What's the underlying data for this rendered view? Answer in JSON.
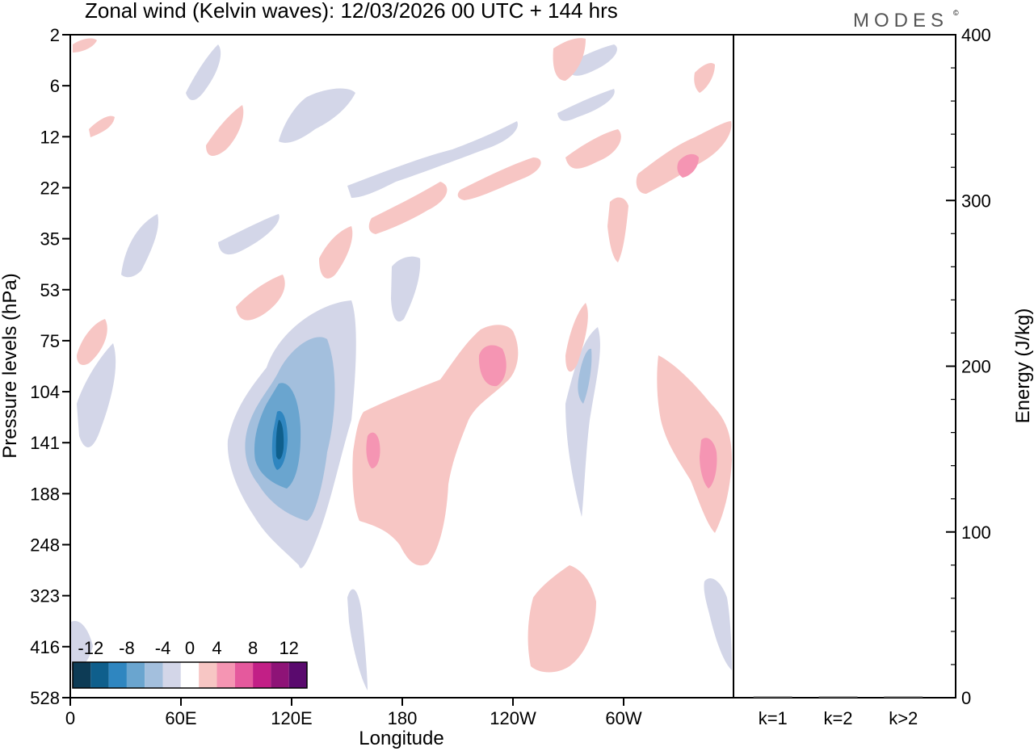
{
  "header": {
    "title": "Zonal wind (Kelvin waves):  12/03/2026  00 UTC  + 144 hrs",
    "logo": "MODES",
    "logo_mark": "©"
  },
  "chart_data": [
    {
      "type": "heatmap",
      "title": "Zonal wind (Kelvin waves):  12/03/2026  00 UTC  + 144 hrs",
      "xlabel": "Longitude",
      "ylabel": "Pressure levels (hPa)",
      "x_tick_labels": [
        "0",
        "60E",
        "120E",
        "180",
        "120W",
        "60W"
      ],
      "y_tick_labels": [
        "2",
        "6",
        "12",
        "22",
        "35",
        "53",
        "75",
        "104",
        "141",
        "188",
        "248",
        "323",
        "416",
        "528"
      ],
      "colorbar": {
        "labels": [
          "-12",
          "-8",
          "-4",
          "0",
          "4",
          "8",
          "12"
        ],
        "levels": [
          -14,
          -12,
          -10,
          -8,
          -6,
          -4,
          -2,
          2,
          4,
          6,
          8,
          10,
          12,
          14
        ],
        "colors": [
          "#0d3b55",
          "#0f5f8c",
          "#2f86c0",
          "#6aa5cf",
          "#a3bfdd",
          "#d3d6e8",
          "#ffffff",
          "#f7c6c4",
          "#f595b3",
          "#e5599d",
          "#c21f86",
          "#8e1377",
          "#5a0a6e"
        ]
      },
      "features": [
        {
          "sign": "negative",
          "max_abs": 13,
          "lon": 107,
          "pressure": 141
        },
        {
          "sign": "positive",
          "max_abs": 6,
          "lon": 223,
          "pressure": 90
        },
        {
          "sign": "positive",
          "max_abs": 6,
          "lon": 156,
          "pressure": 141
        },
        {
          "sign": "positive",
          "max_abs": 6,
          "lon": 337,
          "pressure": 150
        },
        {
          "sign": "positive",
          "max_abs": 6,
          "lon": 334,
          "pressure": 17
        }
      ]
    },
    {
      "type": "bar",
      "ylabel": "Energy (J/kg)",
      "categories": [
        "k=1",
        "k=2",
        "k>2"
      ],
      "values": [
        0.3,
        0.3,
        0.5
      ],
      "ylim": [
        0,
        400
      ],
      "y_tick_labels": [
        "0",
        "100",
        "200",
        "300",
        "400"
      ]
    }
  ]
}
